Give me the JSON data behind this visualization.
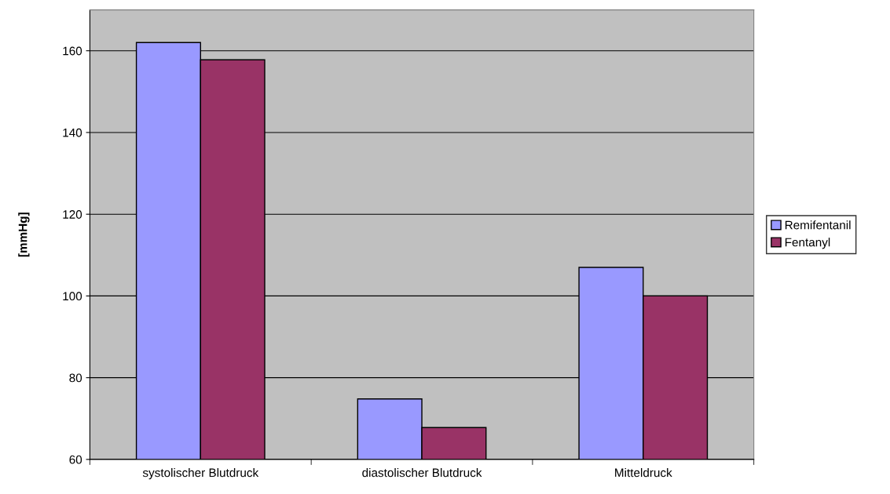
{
  "chart_data": {
    "type": "bar",
    "ylabel": "[mmHg]",
    "categories": [
      "systolischer Blutdruck",
      "diastolischer Blutdruck",
      "Mitteldruck"
    ],
    "series": [
      {
        "name": "Remifentanil",
        "color": "#9999ff",
        "values": [
          162,
          74.8,
          107
        ]
      },
      {
        "name": "Fentanyl",
        "color": "#993366",
        "values": [
          157.8,
          67.8,
          100
        ]
      }
    ],
    "ylim": [
      60,
      170
    ],
    "yticks": [
      60,
      80,
      100,
      120,
      140,
      160
    ],
    "grid": "y",
    "legend": "right"
  }
}
